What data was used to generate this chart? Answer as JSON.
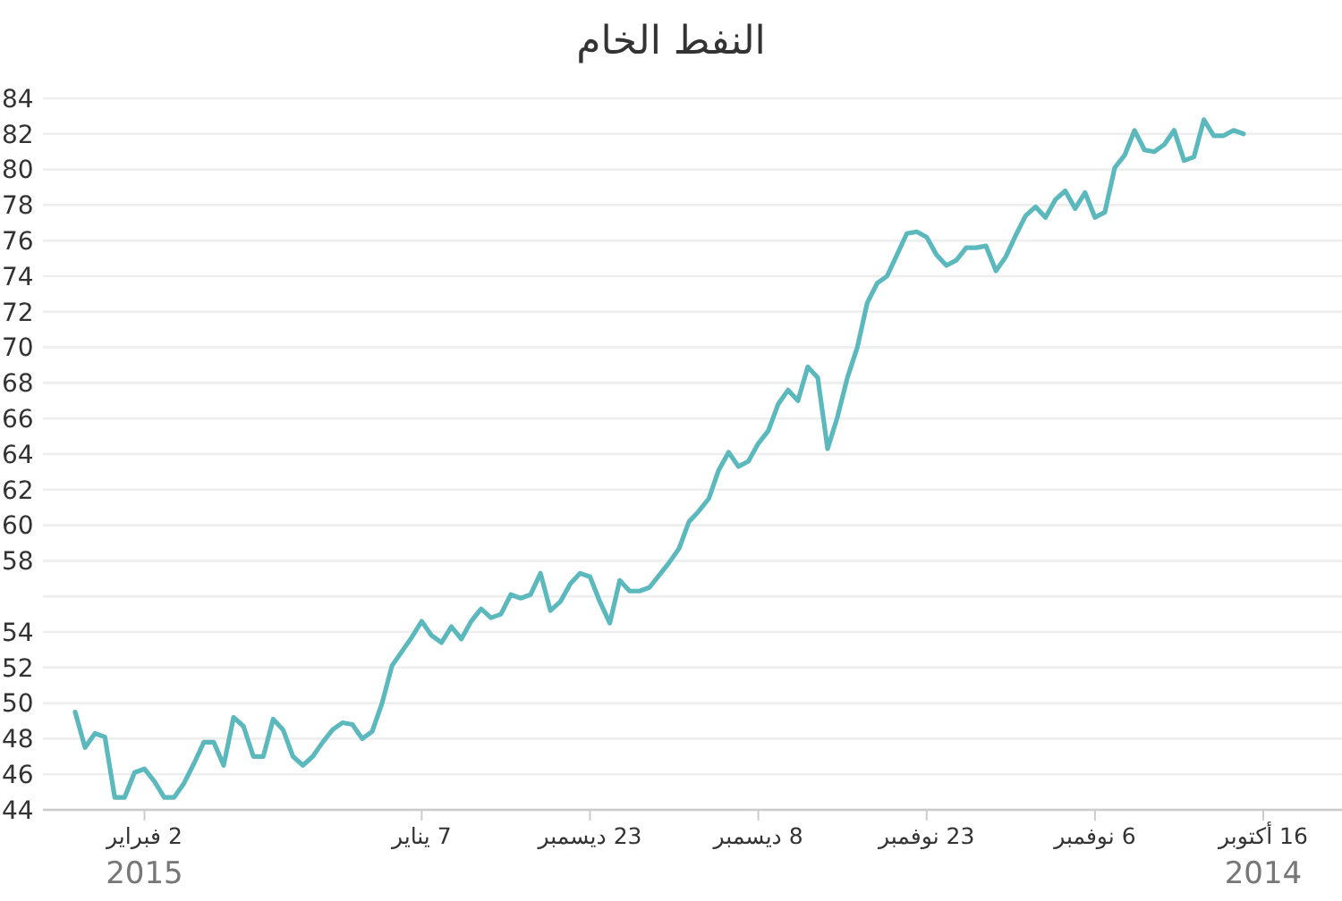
{
  "chart_data": {
    "type": "line",
    "title": "النفط الخام",
    "categories": [
      null,
      null,
      null,
      null,
      null,
      null,
      null,
      "2 فبراير\n2015",
      null,
      null,
      null,
      null,
      null,
      null,
      null,
      null,
      null,
      null,
      null,
      null,
      null,
      null,
      null,
      null,
      null,
      null,
      null,
      null,
      null,
      null,
      null,
      null,
      null,
      null,
      null,
      "7 يناير",
      null,
      null,
      null,
      null,
      null,
      null,
      null,
      null,
      null,
      null,
      null,
      null,
      null,
      null,
      null,
      null,
      "23 ديسمبر",
      null,
      null,
      null,
      null,
      null,
      null,
      null,
      null,
      null,
      null,
      null,
      null,
      null,
      null,
      null,
      null,
      "8 ديسمبر",
      null,
      null,
      null,
      null,
      null,
      null,
      null,
      null,
      null,
      null,
      null,
      null,
      null,
      null,
      null,
      null,
      "23 نوفمبر",
      null,
      null,
      null,
      null,
      null,
      null,
      null,
      null,
      null,
      null,
      null,
      null,
      null,
      null,
      null,
      null,
      "6 نوفمبر",
      null,
      null,
      null,
      null,
      null,
      null,
      null,
      null,
      null,
      null,
      null,
      null,
      null,
      null,
      null,
      null,
      "16 أكتوبر\n2014"
    ],
    "series": [
      {
        "color": "#5bb9be",
        "values": [
          49.5,
          47.5,
          48.3,
          48.1,
          44.7,
          44.7,
          46.1,
          46.3,
          45.6,
          44.7,
          44.7,
          45.5,
          46.6,
          47.8,
          47.8,
          46.5,
          49.2,
          48.7,
          47.0,
          47.0,
          49.1,
          48.5,
          47.0,
          46.5,
          47.0,
          47.8,
          48.5,
          48.9,
          48.8,
          48.0,
          48.4,
          50.0,
          52.1,
          52.9,
          53.7,
          54.6,
          53.8,
          53.4,
          54.3,
          53.6,
          54.6,
          55.3,
          54.8,
          55.0,
          56.1,
          55.9,
          56.1,
          57.3,
          55.2,
          55.7,
          56.7,
          57.3,
          57.1,
          55.7,
          54.5,
          56.9,
          56.3,
          56.3,
          56.5,
          57.2,
          57.9,
          58.7,
          60.2,
          60.8,
          61.5,
          63.1,
          64.1,
          63.3,
          63.6,
          64.6,
          65.3,
          66.8,
          67.6,
          67.0,
          68.9,
          68.3,
          64.3,
          66.1,
          68.3,
          70.0,
          72.5,
          73.6,
          74.0,
          75.2,
          76.4,
          76.5,
          76.2,
          75.2,
          74.6,
          74.9,
          75.6,
          75.6,
          75.7,
          74.3,
          75.1,
          76.3,
          77.4,
          77.9,
          77.3,
          78.3,
          78.8,
          77.8,
          78.7,
          77.3,
          77.6,
          80.1,
          80.8,
          82.2,
          81.1,
          81.0,
          81.4,
          82.2,
          80.5,
          80.7,
          82.8,
          81.9,
          81.9,
          82.2,
          82.0,
          null,
          null
        ]
      }
    ],
    "ylim": [
      44,
      84
    ],
    "yticks": [
      44,
      46,
      48,
      50,
      52,
      54,
      {
        "value": 56,
        "label": null
      },
      58,
      60,
      62,
      64,
      66,
      68,
      70,
      72,
      74,
      76,
      78,
      80,
      82,
      84
    ],
    "grid": "y",
    "legend": false,
    "marker": "none",
    "line_style": "solid"
  }
}
